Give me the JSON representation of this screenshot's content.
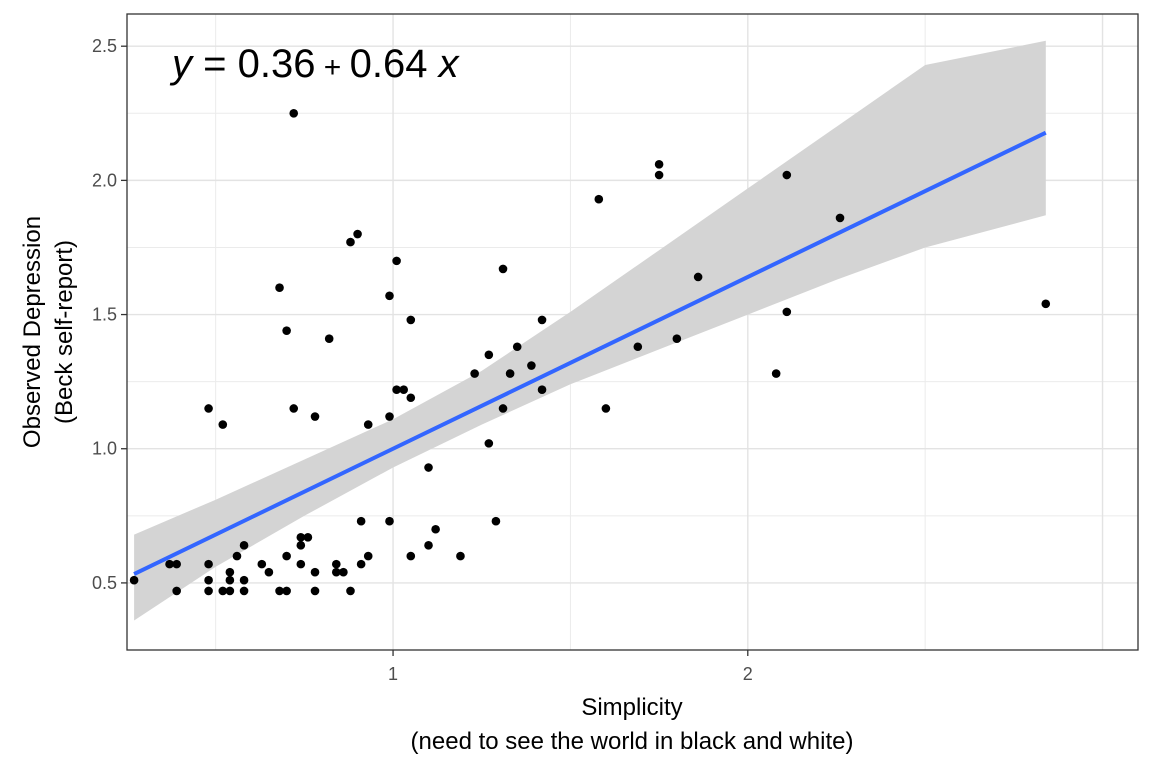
{
  "chart_data": {
    "type": "scatter",
    "equation": {
      "y": "y",
      "equals": " = 0.36",
      "plus": " + ",
      "slope": "0.64 ",
      "x": "x"
    },
    "xlabel": [
      "Simplicity",
      "(need to see the world in black and white)"
    ],
    "ylabel": [
      "Observed Depression",
      "(Beck self-report)"
    ],
    "xlim": [
      0.25,
      3.1
    ],
    "ylim": [
      0.25,
      2.62
    ],
    "x_ticks": [
      1,
      2
    ],
    "y_ticks": [
      0.5,
      1.0,
      1.5,
      2.0,
      2.5
    ],
    "x_tick_labels": [
      "1",
      "2"
    ],
    "y_tick_labels": [
      "0.5",
      "1.0",
      "1.5",
      "2.0",
      "2.5"
    ],
    "grid": true,
    "regression": {
      "intercept": 0.36,
      "slope": 0.64,
      "x_range": [
        0.27,
        2.84
      ]
    },
    "confidence_band": [
      {
        "x": 0.27,
        "lo": 0.36,
        "hi": 0.68
      },
      {
        "x": 0.5,
        "lo": 0.56,
        "hi": 0.81
      },
      {
        "x": 0.75,
        "lo": 0.75,
        "hi": 0.96
      },
      {
        "x": 1.0,
        "lo": 0.93,
        "hi": 1.11
      },
      {
        "x": 1.25,
        "lo": 1.09,
        "hi": 1.29
      },
      {
        "x": 1.5,
        "lo": 1.24,
        "hi": 1.51
      },
      {
        "x": 1.75,
        "lo": 1.37,
        "hi": 1.74
      },
      {
        "x": 2.0,
        "lo": 1.5,
        "hi": 1.97
      },
      {
        "x": 2.25,
        "lo": 1.63,
        "hi": 2.2
      },
      {
        "x": 2.5,
        "lo": 1.75,
        "hi": 2.43
      },
      {
        "x": 2.84,
        "lo": 1.87,
        "hi": 2.52
      }
    ],
    "points": [
      [
        0.27,
        0.51
      ],
      [
        0.37,
        0.57
      ],
      [
        0.39,
        0.57
      ],
      [
        0.39,
        0.47
      ],
      [
        0.48,
        1.15
      ],
      [
        0.52,
        1.09
      ],
      [
        0.48,
        0.57
      ],
      [
        0.48,
        0.51
      ],
      [
        0.48,
        0.47
      ],
      [
        0.52,
        0.47
      ],
      [
        0.54,
        0.54
      ],
      [
        0.54,
        0.51
      ],
      [
        0.54,
        0.47
      ],
      [
        0.56,
        0.6
      ],
      [
        0.58,
        0.64
      ],
      [
        0.58,
        0.51
      ],
      [
        0.58,
        0.47
      ],
      [
        0.63,
        0.57
      ],
      [
        0.65,
        0.54
      ],
      [
        0.68,
        1.6
      ],
      [
        0.68,
        0.47
      ],
      [
        0.7,
        1.44
      ],
      [
        0.7,
        0.6
      ],
      [
        0.7,
        0.47
      ],
      [
        0.72,
        2.25
      ],
      [
        0.72,
        1.15
      ],
      [
        0.74,
        0.67
      ],
      [
        0.74,
        0.64
      ],
      [
        0.74,
        0.57
      ],
      [
        0.76,
        0.67
      ],
      [
        0.78,
        1.12
      ],
      [
        0.78,
        0.54
      ],
      [
        0.78,
        0.47
      ],
      [
        0.82,
        1.41
      ],
      [
        0.84,
        0.57
      ],
      [
        0.84,
        0.54
      ],
      [
        0.86,
        0.54
      ],
      [
        0.88,
        1.77
      ],
      [
        0.88,
        0.47
      ],
      [
        0.9,
        1.8
      ],
      [
        0.91,
        0.73
      ],
      [
        0.91,
        0.57
      ],
      [
        0.93,
        1.09
      ],
      [
        0.93,
        0.6
      ],
      [
        0.99,
        1.57
      ],
      [
        0.99,
        1.12
      ],
      [
        0.99,
        0.73
      ],
      [
        1.01,
        1.7
      ],
      [
        1.01,
        1.22
      ],
      [
        1.03,
        1.22
      ],
      [
        1.05,
        1.48
      ],
      [
        1.05,
        1.19
      ],
      [
        1.05,
        0.6
      ],
      [
        1.1,
        0.93
      ],
      [
        1.1,
        0.64
      ],
      [
        1.12,
        0.7
      ],
      [
        1.19,
        0.6
      ],
      [
        1.23,
        1.28
      ],
      [
        1.27,
        1.35
      ],
      [
        1.27,
        1.02
      ],
      [
        1.29,
        0.73
      ],
      [
        1.31,
        1.67
      ],
      [
        1.31,
        1.15
      ],
      [
        1.33,
        1.28
      ],
      [
        1.35,
        1.38
      ],
      [
        1.39,
        1.31
      ],
      [
        1.42,
        1.48
      ],
      [
        1.42,
        1.22
      ],
      [
        1.58,
        1.93
      ],
      [
        1.6,
        1.15
      ],
      [
        1.69,
        1.38
      ],
      [
        1.75,
        2.06
      ],
      [
        1.75,
        2.02
      ],
      [
        1.8,
        1.41
      ],
      [
        1.86,
        1.64
      ],
      [
        2.08,
        1.28
      ],
      [
        2.11,
        2.02
      ],
      [
        2.11,
        1.51
      ],
      [
        2.26,
        1.86
      ],
      [
        2.84,
        1.54
      ]
    ]
  }
}
